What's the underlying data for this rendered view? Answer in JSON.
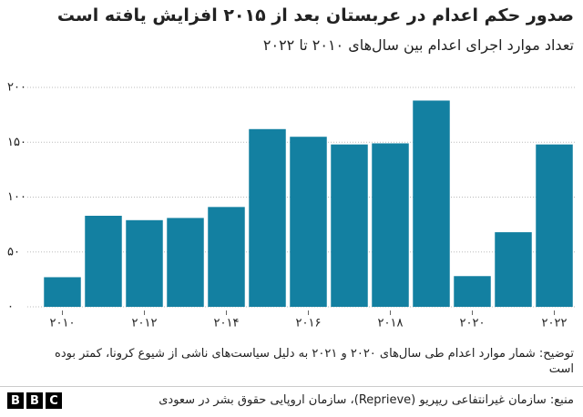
{
  "chart_data": {
    "type": "bar",
    "title": "صدور حکم اعدام در عربستان بعد از ۲۰۱۵ افزایش یافته است",
    "subtitle": "تعداد موارد اجرای اعدام  بین سال‌های ۲۰۱۰ تا ۲۰۲۲",
    "categories": [
      "۲۰۱۰",
      null,
      "۲۰۱۲",
      null,
      "۲۰۱۴",
      null,
      "۲۰۱۶",
      null,
      "۲۰۱۸",
      null,
      "۲۰۲۰",
      null,
      "۲۰۲۲"
    ],
    "values": [
      27,
      83,
      79,
      81,
      91,
      162,
      155,
      148,
      149,
      188,
      28,
      68,
      148
    ],
    "color": "#1380a1",
    "ylim": [
      0,
      200
    ],
    "yticks": [
      {
        "value": 0,
        "label": "۰"
      },
      {
        "value": 50,
        "label": "۵۰"
      },
      {
        "value": 100,
        "label": "۱۰۰"
      },
      {
        "value": 150,
        "label": "۱۵۰"
      },
      {
        "value": 200,
        "label": "۲۰۰"
      }
    ],
    "grid": true,
    "note": "توضیح: شمار موارد اعدام طی سال‌های ۲۰۲۰ و ۲۰۲۱ به دلیل سیاست‌های ناشی از شیوع کرونا، کمتر بوده است",
    "source": "منبع: سازمان غیرانتفاعی ریپریو (Reprieve)، سازمان اروپایی حقوق بشر در سعودی",
    "logo": [
      "B",
      "B",
      "C"
    ]
  }
}
